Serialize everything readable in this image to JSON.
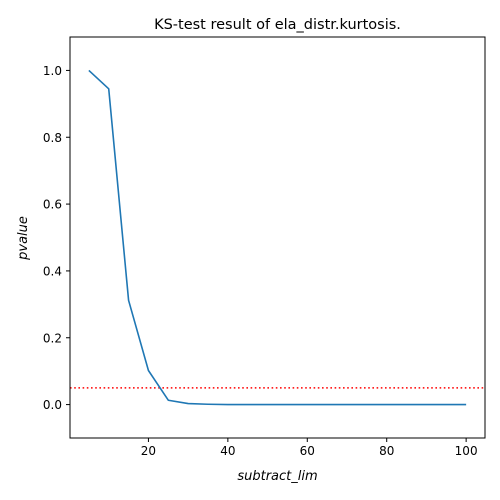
{
  "chart_data": {
    "type": "line",
    "title": "KS-test result of ela_distr.kurtosis.",
    "xlabel": "subtract_lim",
    "ylabel": "pvalue",
    "xlim": [
      0.25,
      104.75
    ],
    "ylim": [
      -0.1,
      1.1
    ],
    "xticks": [
      20,
      40,
      60,
      80,
      100
    ],
    "xtick_labels": [
      "20",
      "40",
      "60",
      "80",
      "100"
    ],
    "yticks": [
      0.0,
      0.2,
      0.4,
      0.6,
      0.8,
      1.0
    ],
    "ytick_labels": [
      "0.0",
      "0.2",
      "0.4",
      "0.6",
      "0.8",
      "1.0"
    ],
    "grid": false,
    "series": [
      {
        "color": "#1f77b4",
        "x": [
          5,
          10,
          15,
          20,
          25,
          30,
          35,
          40,
          45,
          50,
          55,
          60,
          65,
          70,
          75,
          80,
          85,
          90,
          95,
          100
        ],
        "y": [
          1.0,
          0.945,
          0.312,
          0.102,
          0.013,
          0.003,
          0.001,
          0.0,
          0.0,
          0.0,
          0.0,
          0.0,
          0.0,
          0.0,
          0.0,
          0.0,
          0.0,
          0.0,
          0.0,
          0.0
        ]
      }
    ],
    "reference_line": {
      "y": 0.05,
      "color": "#ff0000",
      "style": "dotted"
    }
  }
}
